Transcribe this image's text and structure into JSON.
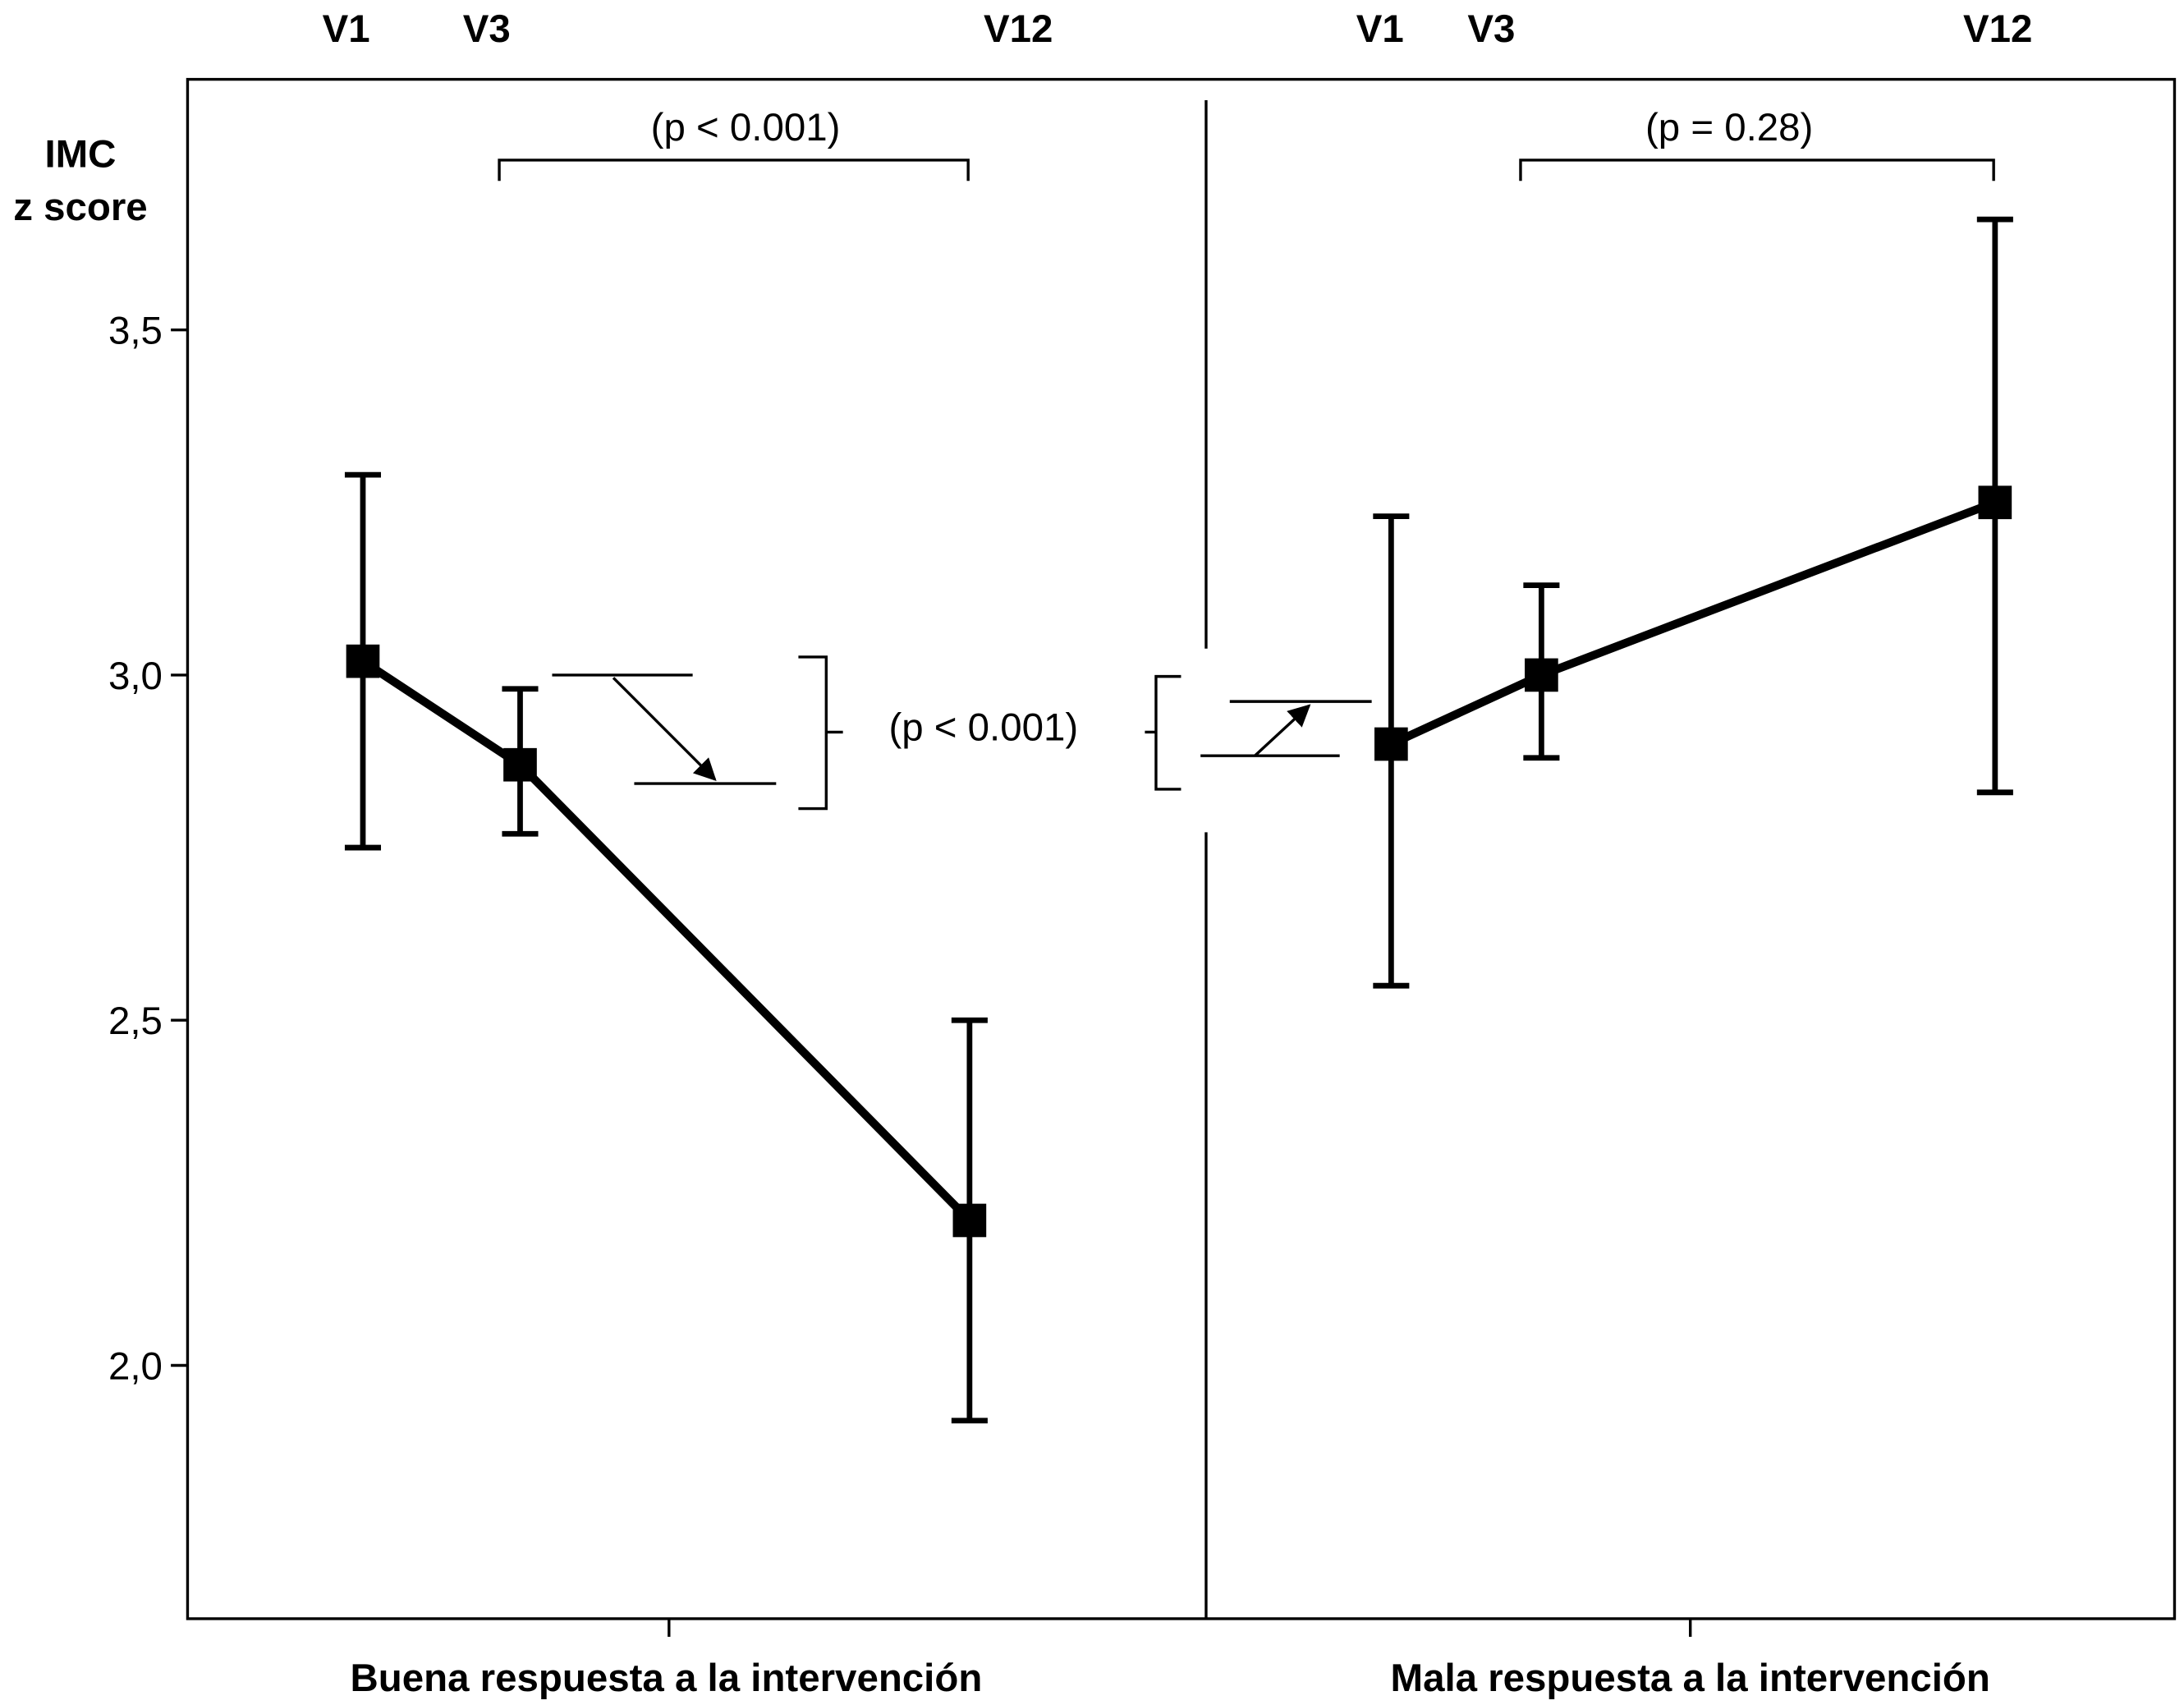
{
  "chart_data": {
    "type": "line",
    "title": "",
    "ylabel": [
      "IMC",
      "z score"
    ],
    "ylim": [
      1.64,
      3.86
    ],
    "yticks": [
      2.0,
      2.5,
      3.0,
      3.5
    ],
    "ytick_labels": [
      "2,0",
      "2,5",
      "3,0",
      "3,5"
    ],
    "visits": [
      "V1",
      "V3",
      "V12"
    ],
    "panels": [
      {
        "name": "Buena respuesta a la intervención",
        "xlabel": "Buena respuesta a la intervención",
        "points": [
          {
            "visit": "V1",
            "mean": 3.02,
            "lower": 2.75,
            "upper": 3.29
          },
          {
            "visit": "V3",
            "mean": 2.87,
            "lower": 2.77,
            "upper": 2.98
          },
          {
            "visit": "V12",
            "mean": 2.21,
            "lower": 1.92,
            "upper": 2.5
          }
        ],
        "comparison_v3_v12": "(p < 0.001)"
      },
      {
        "name": "Mala respuesta a la intervención",
        "xlabel": "Mala respuesta a la intervención",
        "points": [
          {
            "visit": "V1",
            "mean": 2.9,
            "lower": 2.55,
            "upper": 3.23
          },
          {
            "visit": "V3",
            "mean": 3.0,
            "lower": 2.88,
            "upper": 3.13
          },
          {
            "visit": "V12",
            "mean": 3.25,
            "lower": 2.83,
            "upper": 3.66
          }
        ],
        "comparison_v3_v12": "(p = 0.28)"
      }
    ],
    "between_groups_v1_v3_change": "(p < 0.001)"
  }
}
